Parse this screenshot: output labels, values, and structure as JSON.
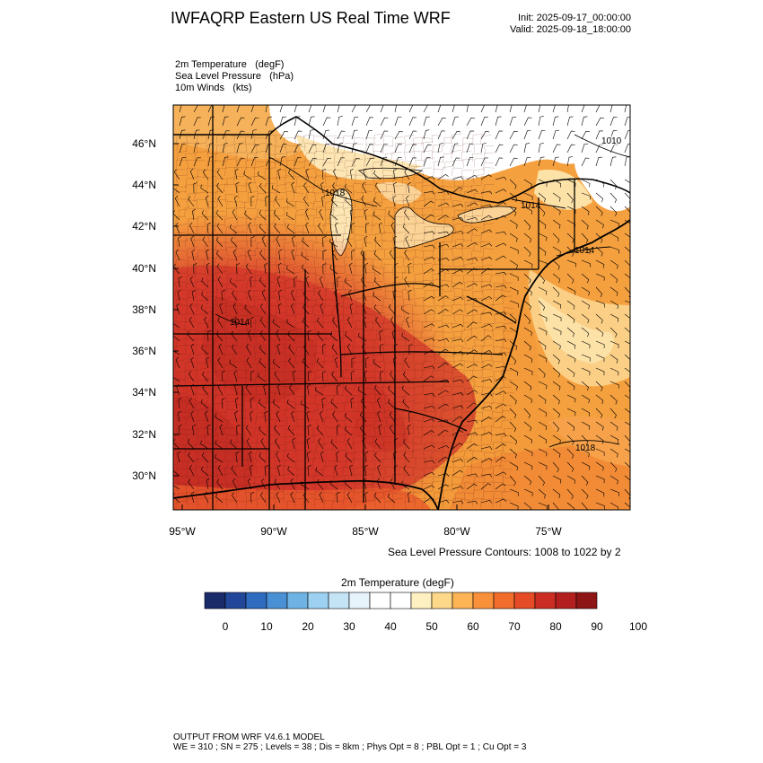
{
  "header": {
    "title": "IWFAQRP Eastern US Real Time WRF",
    "init": "Init: 2025-09-17_00:00:00",
    "valid": "Valid: 2025-09-18_18:00:00"
  },
  "fields": [
    {
      "name": "2m Temperature",
      "unit": "(degF)"
    },
    {
      "name": "Sea Level Pressure",
      "unit": "(hPa)"
    },
    {
      "name": "10m Winds",
      "unit": "(kts)"
    }
  ],
  "map": {
    "lat_ticks": [
      "46°N",
      "44°N",
      "42°N",
      "40°N",
      "38°N",
      "36°N",
      "34°N",
      "32°N",
      "30°N"
    ],
    "lon_ticks": [
      "95°W",
      "90°W",
      "85°W",
      "80°W",
      "75°W"
    ],
    "contour_labels": [
      "1010",
      "1014",
      "1014",
      "1018",
      "1018",
      "1014"
    ],
    "contour_note": "Sea Level Pressure Contours: 1008 to 1022 by 2"
  },
  "colorbar": {
    "title": "2m Temperature  (degF)",
    "colors": [
      "#1a2b6a",
      "#22479a",
      "#2f6bbf",
      "#4a90d4",
      "#6fb3e5",
      "#9dd1f1",
      "#c4e4f6",
      "#e6f3fb",
      "#ffffff",
      "#ffffff",
      "#fff0c2",
      "#fdd88a",
      "#fcb455",
      "#f9913a",
      "#f26d2c",
      "#e54b26",
      "#cc2d22",
      "#b31f1f",
      "#8e1515"
    ],
    "ticks": [
      "0",
      "10",
      "20",
      "30",
      "40",
      "50",
      "60",
      "70",
      "80",
      "90",
      "100"
    ]
  },
  "footer": {
    "line1": "OUTPUT FROM WRF V4.6.1 MODEL",
    "line2": "WE = 310 ; SN = 275 ; Levels = 38 ; Dis = 8km ; Phys Opt = 8 ; PBL Opt = 1 ; Cu Opt = 3"
  }
}
